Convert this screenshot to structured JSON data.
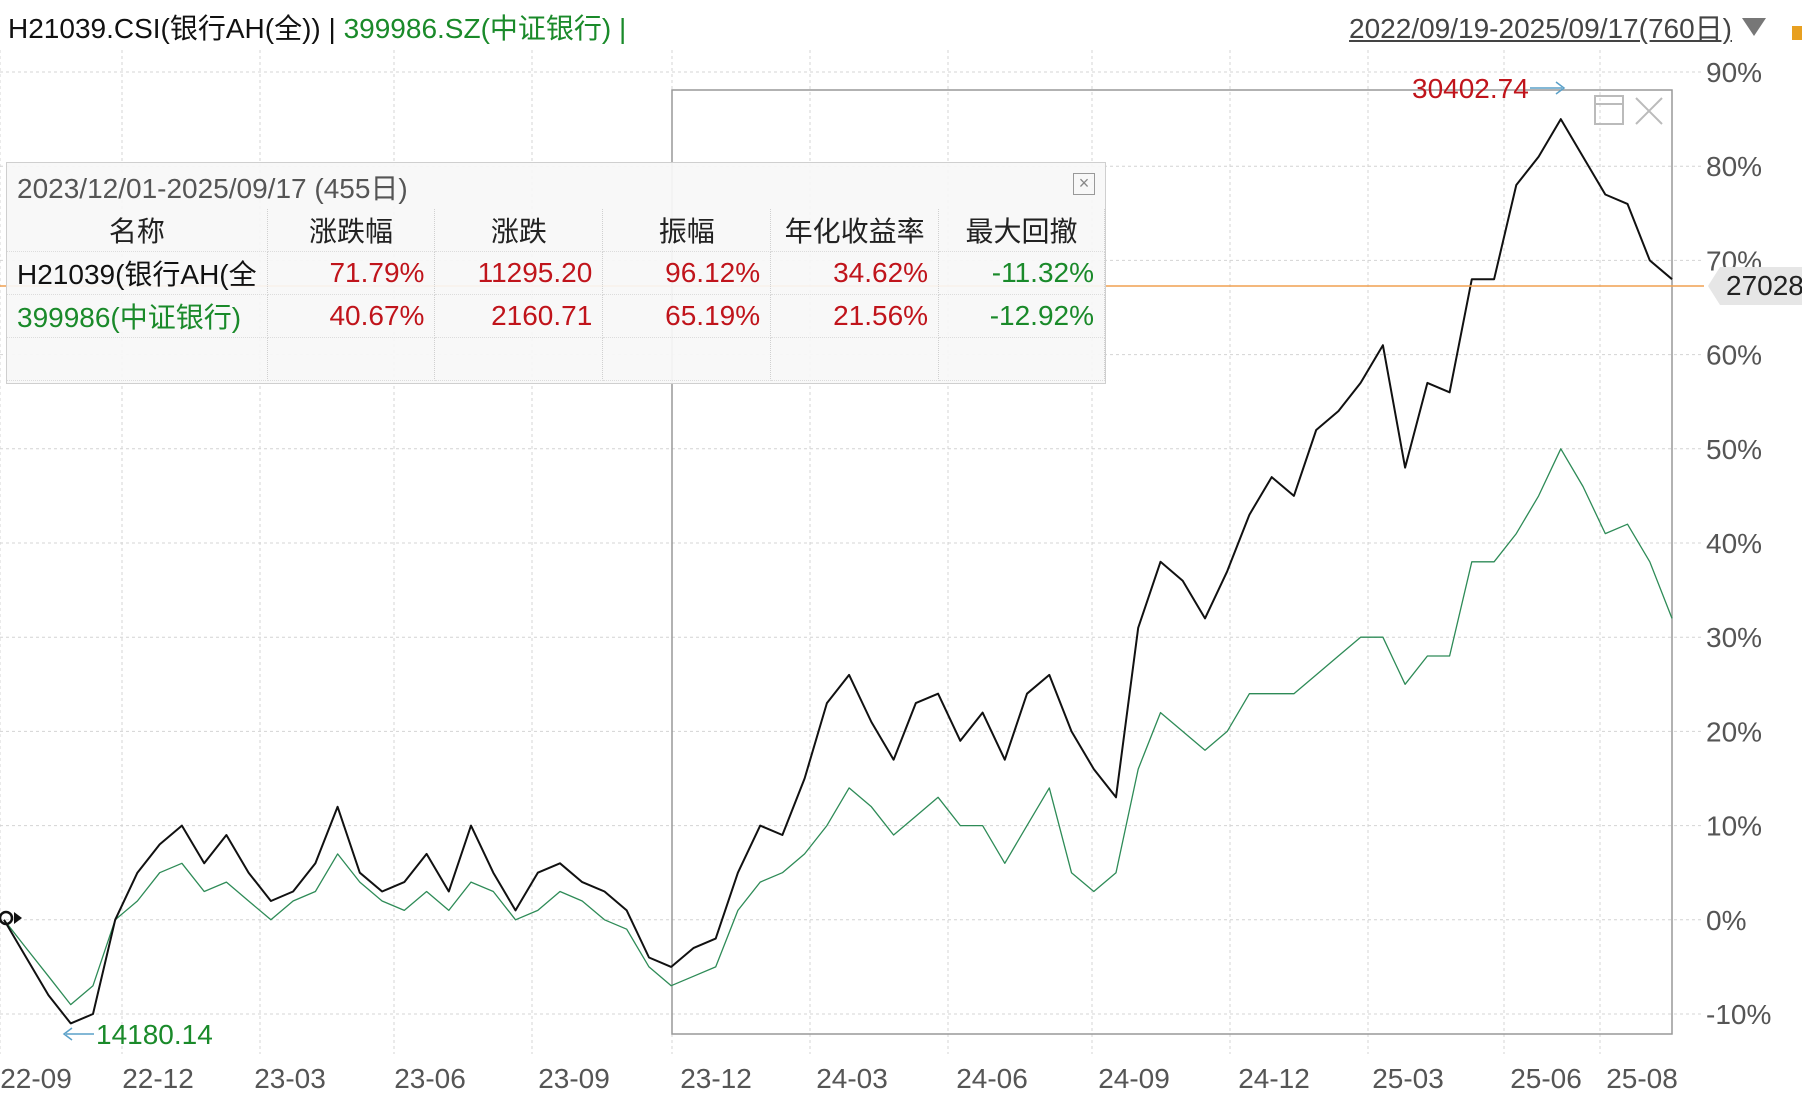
{
  "header": {
    "series1_label": "H21039.CSI(银行AH(全)) | ",
    "series2_label": "399986.SZ(中证银行) |",
    "range_label": "2022/09/19-2025/09/17(760日)"
  },
  "stats_panel": {
    "title": "2023/12/01-2025/09/17 (455日)",
    "columns": [
      "名称",
      "涨跌幅",
      "涨跌",
      "振幅",
      "年化收益率",
      "最大回撤"
    ],
    "rows": [
      {
        "name": "H21039(银行AH(全",
        "pct": "71.79%",
        "change": "11295.20",
        "amplitude": "96.12%",
        "annualized": "34.62%",
        "max_drawdown": "-11.32%"
      },
      {
        "name": "399986(中证银行)",
        "pct": "40.67%",
        "change": "2160.71",
        "amplitude": "65.19%",
        "annualized": "21.56%",
        "max_drawdown": "-12.92%"
      }
    ]
  },
  "annotations": {
    "high_value": "30402.74",
    "low_value": "14180.14",
    "current_value": "27028"
  },
  "colors": {
    "series1": "#111111",
    "series2": "#2e8b57",
    "current_line": "#f0a050",
    "high_label": "#c0141b",
    "low_label": "#1a8a2a"
  },
  "chart_data": {
    "type": "line",
    "y_axis": {
      "ticks": [
        "90%",
        "80%",
        "70%",
        "60%",
        "50%",
        "40%",
        "30%",
        "20%",
        "10%",
        "0%",
        "-10%"
      ],
      "ylim": [
        -13,
        92
      ]
    },
    "x_axis": {
      "ticks": [
        "22-09",
        "22-12",
        "23-03",
        "23-06",
        "23-09",
        "23-12",
        "24-03",
        "24-06",
        "24-09",
        "24-12",
        "25-03",
        "25-06",
        "25-08"
      ]
    },
    "grid": true,
    "selection": {
      "start": "23-12",
      "end": "2025/09/17"
    },
    "series": [
      {
        "values": [
          0,
          -4,
          -8,
          -11,
          -10,
          0,
          5,
          8,
          10,
          6,
          9,
          5,
          2,
          3,
          6,
          12,
          5,
          3,
          4,
          7,
          3,
          10,
          5,
          1,
          5,
          6,
          4,
          3,
          1,
          -4,
          -5,
          -3,
          -2,
          5,
          10,
          9,
          15,
          23,
          26,
          21,
          17,
          23,
          24,
          19,
          22,
          17,
          24,
          26,
          20,
          16,
          13,
          31,
          38,
          36,
          32,
          37,
          43,
          47,
          45,
          52,
          54,
          57,
          61,
          48,
          57,
          56,
          68,
          68,
          78,
          81,
          85,
          81,
          77,
          76,
          70,
          68
        ]
      },
      {
        "values": [
          0,
          -3,
          -6,
          -9,
          -7,
          0,
          2,
          5,
          6,
          3,
          4,
          2,
          0,
          2,
          3,
          7,
          4,
          2,
          1,
          3,
          1,
          4,
          3,
          0,
          1,
          3,
          2,
          0,
          -1,
          -5,
          -7,
          -6,
          -5,
          1,
          4,
          5,
          7,
          10,
          14,
          12,
          9,
          11,
          13,
          10,
          10,
          6,
          10,
          14,
          5,
          3,
          5,
          16,
          22,
          20,
          18,
          20,
          24,
          24,
          24,
          26,
          28,
          30,
          30,
          25,
          28,
          28,
          38,
          38,
          41,
          45,
          50,
          46,
          41,
          42,
          38,
          32
        ]
      }
    ]
  }
}
